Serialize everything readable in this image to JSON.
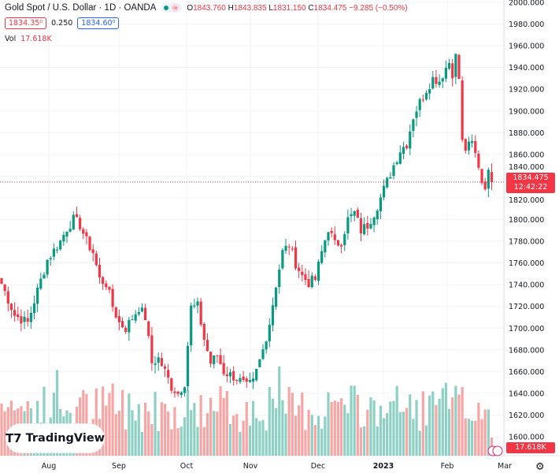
{
  "header": {
    "symbol_title": "Gold Spot / U.S. Dollar · 1D · OANDA",
    "open_label": "O",
    "open": "1843.760",
    "high_label": "H",
    "high": "1843.835",
    "low_label": "L",
    "low": "1831.150",
    "close_label": "C",
    "close": "1834.475",
    "change": "−9.285 (−0.50%)",
    "bid": "1834.35⁰",
    "spread": "0.250",
    "ask": "1834.60⁰",
    "vol_label": "Vol",
    "vol_value": "17.618K"
  },
  "price_tag": {
    "price": "1834.475",
    "countdown": "12:42:22"
  },
  "volume_tag": "17.618K",
  "logo_text": "TradingView",
  "colors": {
    "up": "#089981",
    "down": "#f23645",
    "up_vol": "#8fd0c4",
    "down_vol": "#f8a5a5"
  },
  "chart_data": {
    "type": "candlestick",
    "title": "Gold Spot / U.S. Dollar · 1D · OANDA",
    "ylim": [
      1600,
      2000
    ],
    "y_ticks": [
      "2000.000",
      "1980.000",
      "1960.000",
      "1940.000",
      "1920.000",
      "1900.000",
      "1880.000",
      "1860.000",
      "1840.000",
      "1820.000",
      "1800.000",
      "1780.000",
      "1760.000",
      "1740.000",
      "1720.000",
      "1700.000",
      "1680.000",
      "1660.000",
      "1640.000",
      "1620.000",
      "1600.000"
    ],
    "x_ticks": [
      "Aug",
      "Sep",
      "Oct",
      "Nov",
      "Dec",
      "2023",
      "Feb",
      "Mar"
    ],
    "close_keypoints": [
      [
        0,
        1741
      ],
      [
        4,
        1712
      ],
      [
        8,
        1705
      ],
      [
        10,
        1725
      ],
      [
        14,
        1763
      ],
      [
        18,
        1780
      ],
      [
        20,
        1792
      ],
      [
        22,
        1800
      ],
      [
        24,
        1795
      ],
      [
        26,
        1780
      ],
      [
        28,
        1770
      ],
      [
        30,
        1745
      ],
      [
        32,
        1741
      ],
      [
        34,
        1720
      ],
      [
        36,
        1705
      ],
      [
        38,
        1700
      ],
      [
        42,
        1719
      ],
      [
        44,
        1710
      ],
      [
        46,
        1668
      ],
      [
        48,
        1672
      ],
      [
        50,
        1660
      ],
      [
        52,
        1646
      ],
      [
        54,
        1640
      ],
      [
        56,
        1650
      ],
      [
        58,
        1719
      ],
      [
        60,
        1720
      ],
      [
        62,
        1690
      ],
      [
        64,
        1668
      ],
      [
        66,
        1675
      ],
      [
        68,
        1660
      ],
      [
        72,
        1654
      ],
      [
        75,
        1646
      ],
      [
        77,
        1650
      ],
      [
        80,
        1680
      ],
      [
        82,
        1705
      ],
      [
        84,
        1740
      ],
      [
        86,
        1770
      ],
      [
        88,
        1777
      ],
      [
        90,
        1760
      ],
      [
        92,
        1748
      ],
      [
        94,
        1742
      ],
      [
        96,
        1745
      ],
      [
        98,
        1770
      ],
      [
        100,
        1792
      ],
      [
        102,
        1777
      ],
      [
        104,
        1780
      ],
      [
        106,
        1800
      ],
      [
        108,
        1806
      ],
      [
        110,
        1790
      ],
      [
        112,
        1795
      ],
      [
        114,
        1806
      ],
      [
        116,
        1820
      ],
      [
        118,
        1835
      ],
      [
        120,
        1850
      ],
      [
        122,
        1864
      ],
      [
        124,
        1870
      ],
      [
        126,
        1895
      ],
      [
        128,
        1908
      ],
      [
        130,
        1920
      ],
      [
        132,
        1930
      ],
      [
        134,
        1928
      ],
      [
        136,
        1940
      ],
      [
        137,
        1945
      ],
      [
        138,
        1935
      ],
      [
        139,
        1950
      ],
      [
        140,
        1930
      ],
      [
        141,
        1871
      ],
      [
        142,
        1865
      ],
      [
        144,
        1870
      ],
      [
        145,
        1860
      ],
      [
        146,
        1850
      ],
      [
        147,
        1835
      ],
      [
        148,
        1832
      ],
      [
        149,
        1842
      ],
      [
        150,
        1834.475
      ]
    ],
    "last_price": 1834.475
  }
}
